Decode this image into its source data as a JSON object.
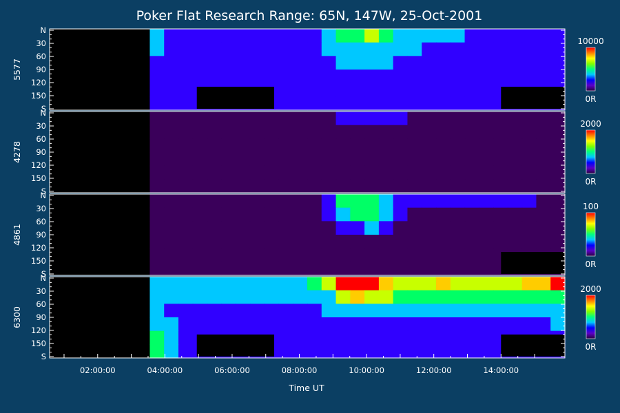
{
  "chart_data": {
    "type": "heatmap",
    "title": "Poker Flat Research Range: 65N, 147W, 25-Oct-2001",
    "xlabel": "Time UT",
    "x_ticks": [
      "02:00:00",
      "04:00:00",
      "06:00:00",
      "08:00:00",
      "10:00:00",
      "12:00:00",
      "14:00:00"
    ],
    "x_range_hours": [
      0.57,
      15.9
    ],
    "y_axis": {
      "top_label": "N",
      "bottom_label": "S",
      "ticks": [
        "30",
        "60",
        "90",
        "120",
        "150"
      ],
      "range_deg": [
        0,
        180
      ]
    },
    "colors": {
      "background": "#0b3f63",
      "colormap": [
        "#000000",
        "#3a005a",
        "#3000ff",
        "#00c8ff",
        "#00ff66",
        "#c8ff00",
        "#ffcc00",
        "#ff0000"
      ]
    },
    "panels": [
      {
        "ylabel": "5577",
        "colorbar_max": "10000",
        "colorbar_min": "0R",
        "data_start_hour": 3.05,
        "dark_blocks": [
          [
            4.95,
            7.25
          ],
          [
            14.0,
            15.9
          ]
        ],
        "rows": [
          [
            0,
            0,
            0,
            0,
            0,
            0,
            0,
            3,
            2,
            2,
            2,
            2,
            2,
            2,
            2,
            2,
            2,
            2,
            2,
            3,
            4,
            4,
            5,
            4,
            3,
            3,
            3,
            3,
            3,
            2,
            2,
            2,
            2,
            2,
            2,
            2
          ],
          [
            0,
            0,
            0,
            0,
            0,
            0,
            0,
            3,
            2,
            2,
            2,
            2,
            2,
            2,
            2,
            2,
            2,
            2,
            2,
            3,
            3,
            3,
            3,
            3,
            3,
            3,
            2,
            2,
            2,
            2,
            2,
            2,
            2,
            2,
            2,
            2
          ],
          [
            0,
            0,
            0,
            0,
            0,
            0,
            0,
            2,
            2,
            2,
            2,
            2,
            2,
            2,
            2,
            2,
            2,
            2,
            2,
            2,
            3,
            3,
            3,
            3,
            2,
            2,
            2,
            2,
            2,
            2,
            2,
            2,
            2,
            2,
            2,
            2
          ],
          [
            0,
            0,
            0,
            0,
            0,
            0,
            0,
            2,
            2,
            2,
            2,
            2,
            2,
            2,
            2,
            2,
            2,
            2,
            2,
            2,
            2,
            2,
            2,
            2,
            2,
            2,
            2,
            2,
            2,
            2,
            2,
            2,
            2,
            2,
            2,
            2
          ],
          [
            0,
            0,
            0,
            0,
            0,
            0,
            0,
            2,
            2,
            2,
            2,
            2,
            2,
            2,
            2,
            2,
            2,
            2,
            2,
            2,
            2,
            2,
            2,
            2,
            2,
            2,
            2,
            2,
            2,
            2,
            2,
            2,
            2,
            2,
            2,
            2
          ],
          [
            0,
            0,
            0,
            0,
            0,
            0,
            0,
            2,
            2,
            2,
            2,
            2,
            2,
            2,
            2,
            2,
            2,
            2,
            2,
            2,
            2,
            2,
            2,
            2,
            2,
            2,
            2,
            2,
            2,
            2,
            2,
            2,
            2,
            2,
            2,
            2
          ]
        ]
      },
      {
        "ylabel": "4278",
        "colorbar_max": "2000",
        "colorbar_min": "0R",
        "data_start_hour": 3.05,
        "dark_blocks": [],
        "rows": [
          [
            0,
            0,
            0,
            0,
            0,
            0,
            0,
            1,
            1,
            1,
            1,
            1,
            1,
            1,
            1,
            1,
            1,
            1,
            1,
            1,
            2,
            2,
            2,
            2,
            2,
            1,
            1,
            1,
            1,
            1,
            1,
            1,
            1,
            1,
            1,
            1
          ],
          [
            0,
            0,
            0,
            0,
            0,
            0,
            0,
            1,
            1,
            1,
            1,
            1,
            1,
            1,
            1,
            1,
            1,
            1,
            1,
            1,
            1,
            1,
            1,
            1,
            1,
            1,
            1,
            1,
            1,
            1,
            1,
            1,
            1,
            1,
            1,
            1
          ],
          [
            0,
            0,
            0,
            0,
            0,
            0,
            0,
            1,
            1,
            1,
            1,
            1,
            1,
            1,
            1,
            1,
            1,
            1,
            1,
            1,
            1,
            1,
            1,
            1,
            1,
            1,
            1,
            1,
            1,
            1,
            1,
            1,
            1,
            1,
            1,
            1
          ],
          [
            0,
            0,
            0,
            0,
            0,
            0,
            0,
            1,
            1,
            1,
            1,
            1,
            1,
            1,
            1,
            1,
            1,
            1,
            1,
            1,
            1,
            1,
            1,
            1,
            1,
            1,
            1,
            1,
            1,
            1,
            1,
            1,
            1,
            1,
            1,
            1
          ],
          [
            0,
            0,
            0,
            0,
            0,
            0,
            0,
            1,
            1,
            1,
            1,
            1,
            1,
            1,
            1,
            1,
            1,
            1,
            1,
            1,
            1,
            1,
            1,
            1,
            1,
            1,
            1,
            1,
            1,
            1,
            1,
            1,
            1,
            1,
            1,
            1
          ],
          [
            0,
            0,
            0,
            0,
            0,
            0,
            0,
            1,
            1,
            1,
            1,
            1,
            1,
            1,
            1,
            1,
            1,
            1,
            1,
            1,
            1,
            1,
            1,
            1,
            1,
            1,
            1,
            1,
            1,
            1,
            1,
            1,
            1,
            1,
            1,
            1
          ]
        ]
      },
      {
        "ylabel": "4861",
        "colorbar_max": "100",
        "colorbar_min": "0R",
        "data_start_hour": 3.05,
        "dark_blocks": [
          [
            14.0,
            15.9
          ]
        ],
        "rows": [
          [
            0,
            0,
            0,
            0,
            0,
            0,
            0,
            1,
            1,
            1,
            1,
            1,
            1,
            1,
            1,
            1,
            1,
            1,
            1,
            2,
            4,
            4,
            4,
            3,
            2,
            2,
            2,
            2,
            2,
            2,
            2,
            2,
            2,
            2,
            1,
            1
          ],
          [
            0,
            0,
            0,
            0,
            0,
            0,
            0,
            1,
            1,
            1,
            1,
            1,
            1,
            1,
            1,
            1,
            1,
            1,
            1,
            2,
            3,
            4,
            4,
            3,
            2,
            1,
            1,
            1,
            1,
            1,
            1,
            1,
            1,
            1,
            1,
            1
          ],
          [
            0,
            0,
            0,
            0,
            0,
            0,
            0,
            1,
            1,
            1,
            1,
            1,
            1,
            1,
            1,
            1,
            1,
            1,
            1,
            1,
            2,
            2,
            3,
            2,
            1,
            1,
            1,
            1,
            1,
            1,
            1,
            1,
            1,
            1,
            1,
            1
          ],
          [
            0,
            0,
            0,
            0,
            0,
            0,
            0,
            1,
            1,
            1,
            1,
            1,
            1,
            1,
            1,
            1,
            1,
            1,
            1,
            1,
            1,
            1,
            1,
            1,
            1,
            1,
            1,
            1,
            1,
            1,
            1,
            1,
            1,
            1,
            1,
            1
          ],
          [
            0,
            0,
            0,
            0,
            0,
            0,
            0,
            1,
            1,
            1,
            1,
            1,
            1,
            1,
            1,
            1,
            1,
            1,
            1,
            1,
            1,
            1,
            1,
            1,
            1,
            1,
            1,
            1,
            1,
            1,
            1,
            1,
            1,
            1,
            1,
            1
          ],
          [
            0,
            0,
            0,
            0,
            0,
            0,
            0,
            1,
            1,
            1,
            1,
            1,
            1,
            1,
            1,
            1,
            1,
            1,
            1,
            1,
            1,
            1,
            1,
            1,
            1,
            1,
            1,
            1,
            1,
            1,
            1,
            1,
            1,
            1,
            1,
            1
          ]
        ]
      },
      {
        "ylabel": "6300",
        "colorbar_max": "2000",
        "colorbar_min": "0R",
        "data_start_hour": 3.05,
        "dark_blocks": [
          [
            4.95,
            7.25
          ],
          [
            14.0,
            15.9
          ]
        ],
        "rows": [
          [
            0,
            0,
            0,
            0,
            0,
            0,
            0,
            3,
            3,
            3,
            3,
            3,
            3,
            3,
            3,
            3,
            3,
            3,
            4,
            5,
            7,
            7,
            7,
            6,
            5,
            5,
            5,
            6,
            5,
            5,
            5,
            5,
            5,
            6,
            6,
            7
          ],
          [
            0,
            0,
            0,
            0,
            0,
            0,
            0,
            3,
            3,
            3,
            3,
            3,
            3,
            3,
            3,
            3,
            3,
            3,
            3,
            3,
            5,
            6,
            5,
            5,
            4,
            4,
            4,
            4,
            4,
            4,
            4,
            4,
            4,
            4,
            4,
            4
          ],
          [
            0,
            0,
            0,
            0,
            0,
            0,
            0,
            3,
            2,
            2,
            2,
            2,
            2,
            2,
            2,
            2,
            2,
            2,
            2,
            3,
            3,
            3,
            3,
            3,
            3,
            3,
            3,
            3,
            3,
            3,
            3,
            3,
            3,
            3,
            3,
            3
          ],
          [
            0,
            0,
            0,
            0,
            0,
            0,
            0,
            3,
            3,
            2,
            2,
            2,
            2,
            2,
            2,
            2,
            2,
            2,
            2,
            2,
            2,
            2,
            2,
            2,
            2,
            2,
            2,
            2,
            2,
            2,
            2,
            2,
            2,
            2,
            2,
            3
          ],
          [
            0,
            0,
            0,
            0,
            0,
            0,
            0,
            4,
            3,
            2,
            2,
            2,
            2,
            2,
            2,
            2,
            2,
            2,
            2,
            2,
            2,
            2,
            2,
            2,
            2,
            2,
            2,
            2,
            2,
            2,
            2,
            2,
            2,
            2,
            2,
            2
          ],
          [
            0,
            0,
            0,
            0,
            0,
            0,
            0,
            4,
            3,
            2,
            2,
            2,
            2,
            2,
            2,
            2,
            2,
            2,
            2,
            2,
            2,
            2,
            2,
            2,
            2,
            2,
            2,
            2,
            2,
            2,
            2,
            2,
            2,
            2,
            2,
            2
          ]
        ]
      }
    ]
  }
}
